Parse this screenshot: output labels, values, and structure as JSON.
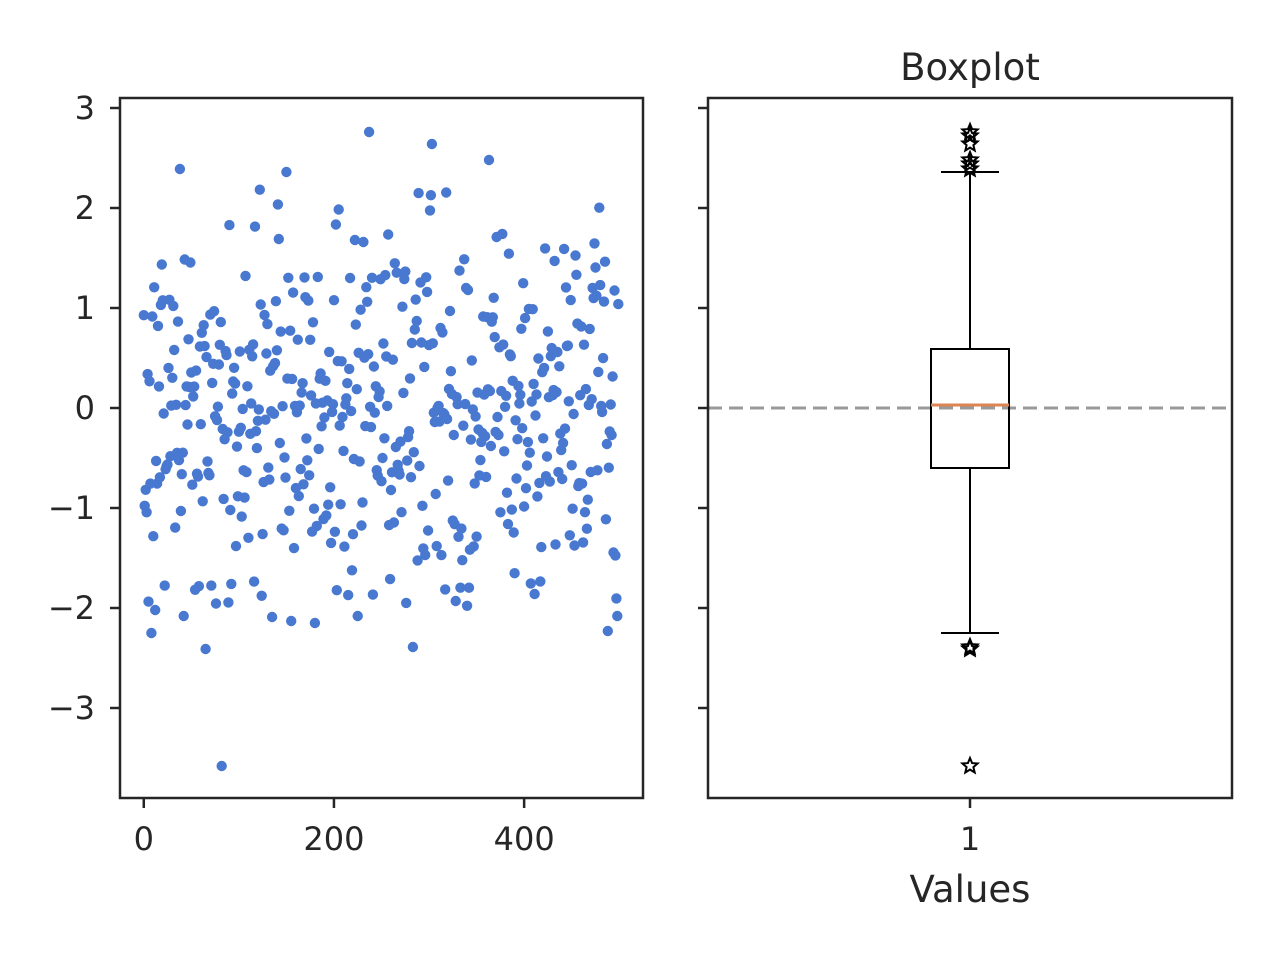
{
  "chart_data": [
    {
      "type": "scatter",
      "title": "",
      "xlabel": "",
      "ylabel": "",
      "xlim": [
        -25,
        525
      ],
      "ylim": [
        -3.9,
        3.1
      ],
      "x_ticks": [
        0,
        200,
        400
      ],
      "x_tick_labels": [
        "0",
        "200",
        "400"
      ],
      "y_ticks": [
        3,
        2,
        1,
        0,
        -1,
        -2,
        -3
      ],
      "y_tick_labels": [
        "3",
        "2",
        "1",
        "0",
        "−1",
        "−2",
        "−3"
      ],
      "grid": false,
      "marker_color": "#4878d0",
      "notable_points": [
        {
          "x": 82,
          "y": -3.58
        },
        {
          "x": 237,
          "y": 2.76
        },
        {
          "x": 303,
          "y": 2.64
        },
        {
          "x": 363,
          "y": 2.48
        },
        {
          "x": 38,
          "y": 2.39
        },
        {
          "x": 150,
          "y": 2.36
        },
        {
          "x": 283,
          "y": -2.39
        },
        {
          "x": 65,
          "y": -2.41
        },
        {
          "x": 8,
          "y": -2.25
        },
        {
          "x": 488,
          "y": -2.23
        },
        {
          "x": 180,
          "y": -2.15
        },
        {
          "x": 155,
          "y": -2.13
        },
        {
          "x": 135,
          "y": -2.09
        },
        {
          "x": 225,
          "y": -2.08
        },
        {
          "x": 42,
          "y": -2.08
        },
        {
          "x": 498,
          "y": -2.08
        },
        {
          "x": 12,
          "y": -2.02
        }
      ],
      "n_points": 500,
      "distribution": "standard normal noise (mean 0, sd 1)"
    },
    {
      "type": "box",
      "title": "Boxplot",
      "xlabel": "Values",
      "ylabel": "",
      "x_tick_labels": [
        "1"
      ],
      "shared_y_with_left": true,
      "stats": {
        "median": 0.03,
        "q1": -0.6,
        "q3": 0.59,
        "whisker_low": -2.25,
        "whisker_high": 2.36
      },
      "fliers": [
        2.76,
        2.72,
        2.64,
        2.48,
        2.44,
        2.39,
        -2.39,
        -2.41,
        -3.58
      ],
      "reference_line": {
        "y": 0,
        "style": "dashed",
        "color": "#999999"
      },
      "median_color": "#dd8452",
      "flier_marker": "star"
    }
  ]
}
